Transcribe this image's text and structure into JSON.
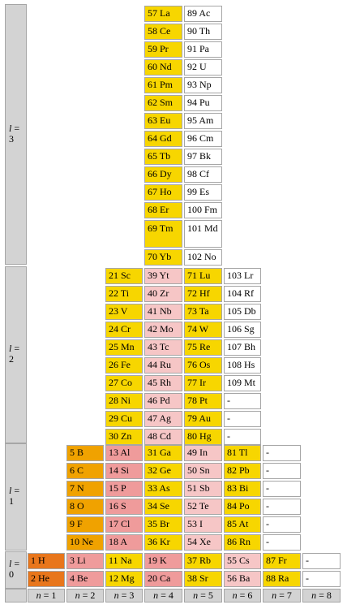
{
  "groups": [
    {
      "l_label": "l",
      "l_value": "3"
    },
    {
      "l_label": "l",
      "l_value": "2"
    },
    {
      "l_label": "l",
      "l_value": "1"
    },
    {
      "l_label": "l",
      "l_value": "0"
    }
  ],
  "n_labels": [
    "n = 1",
    "n = 2",
    "n = 3",
    "n = 4",
    "n = 5",
    "n = 6",
    "n = 7",
    "n = 8"
  ],
  "legend_colors": {
    "f_block": "#f7d600",
    "d_block": "#f0a200",
    "p_block": "#ef9b9b",
    "s_block": "#e8761c",
    "unknown": "#ffffff"
  },
  "rows": [
    {
      "cells": [
        "57 La",
        "89 Ac"
      ]
    },
    {
      "cells": [
        "58 Ce",
        "90 Th"
      ]
    },
    {
      "cells": [
        "59 Pr",
        "91 Pa"
      ]
    },
    {
      "cells": [
        "60 Nd",
        "92 U"
      ]
    },
    {
      "cells": [
        "61 Pm",
        "93 Np"
      ]
    },
    {
      "cells": [
        "62 Sm",
        "94 Pu"
      ]
    },
    {
      "cells": [
        "63 Eu",
        "95 Am"
      ]
    },
    {
      "cells": [
        "64 Gd",
        "96 Cm"
      ]
    },
    {
      "cells": [
        "65 Tb",
        "97 Bk"
      ]
    },
    {
      "cells": [
        "66 Dy",
        "98 Cf"
      ]
    },
    {
      "cells": [
        "67 Ho",
        "99 Es"
      ]
    },
    {
      "cells": [
        "68 Er",
        "100 Fm"
      ]
    },
    {
      "cells": [
        "69 Tm",
        "101 Md"
      ]
    },
    {
      "cells": [
        "70 Yb",
        "102 No"
      ]
    },
    {
      "cells": [
        "21 Sc",
        "39 Yt",
        "71 Lu",
        "103 Lr"
      ]
    },
    {
      "cells": [
        "22 Ti",
        "40 Zr",
        "72 Hf",
        "104 Rf"
      ]
    },
    {
      "cells": [
        "23 V",
        "41 Nb",
        "73 Ta",
        "105 Db"
      ]
    },
    {
      "cells": [
        "24 Cr",
        "42 Mo",
        "74 W",
        "106 Sg"
      ]
    },
    {
      "cells": [
        "25 Mn",
        "43 Tc",
        "75 Re",
        "107 Bh"
      ]
    },
    {
      "cells": [
        "26 Fe",
        "44 Ru",
        "76 Os",
        "108 Hs"
      ]
    },
    {
      "cells": [
        "27 Co",
        "45 Rh",
        "77 Ir",
        "109 Mt"
      ]
    },
    {
      "cells": [
        "28 Ni",
        "46 Pd",
        "78 Pt",
        "-"
      ]
    },
    {
      "cells": [
        "29 Cu",
        "47 Ag",
        "79 Au",
        "-"
      ]
    },
    {
      "cells": [
        "30 Zn",
        "48 Cd",
        "80 Hg",
        "-"
      ]
    },
    {
      "cells": [
        "5 B",
        "13 Al",
        "31 Ga",
        "49 In",
        "81 Tl",
        "-"
      ]
    },
    {
      "cells": [
        "6 C",
        "14 Si",
        "32 Ge",
        "50 Sn",
        "82 Pb",
        "-"
      ]
    },
    {
      "cells": [
        "7 N",
        "15 P",
        "33 As",
        "51 Sb",
        "83 Bi",
        "-"
      ]
    },
    {
      "cells": [
        "8 O",
        "16 S",
        "34 Se",
        "52 Te",
        "84 Po",
        "-"
      ]
    },
    {
      "cells": [
        "9 F",
        "17 Cl",
        "35 Br",
        "53 I",
        "85 At",
        "-"
      ]
    },
    {
      "cells": [
        "10 Ne",
        "18 A",
        "36 Kr",
        "54 Xe",
        "86 Rn",
        "-"
      ]
    },
    {
      "cells": [
        "1 H",
        "3 Li",
        "11 Na",
        "19 K",
        "37 Rb",
        "55 Cs",
        "87 Fr",
        "-"
      ]
    },
    {
      "cells": [
        "2 He",
        "4 Be",
        "12 Mg",
        "20 Ca",
        "38 Sr",
        "56 Ba",
        "88 Ra",
        "-"
      ]
    }
  ]
}
